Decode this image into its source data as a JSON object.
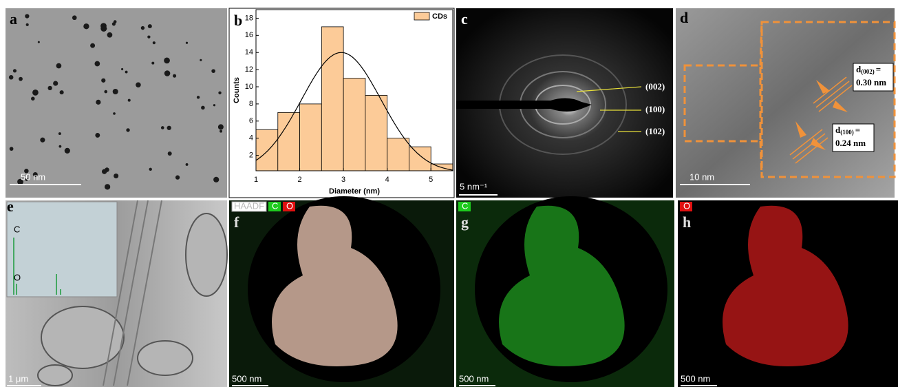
{
  "panels": {
    "a": {
      "label": "a",
      "scale_bar": "50 nm"
    },
    "b": {
      "label": "b"
    },
    "c": {
      "label": "c",
      "scale_bar": "5 nm⁻¹",
      "planes": [
        "(002)",
        "(100)",
        "(102)"
      ]
    },
    "d": {
      "label": "d",
      "scale_bar": "10 nm",
      "spacings": [
        {
          "symbol": "d",
          "plane": "(002)",
          "eq": "=",
          "value": "0.30 nm"
        },
        {
          "symbol": "d",
          "plane": "(100)",
          "eq": "=",
          "value": "0.24 nm"
        }
      ]
    },
    "e": {
      "label": "e",
      "scale_bar": "1 μm",
      "peaks": [
        "C",
        "O"
      ]
    },
    "f": {
      "label": "f",
      "scale_bar": "500 nm",
      "tags": [
        "HAADF",
        "C",
        "O"
      ]
    },
    "g": {
      "label": "g",
      "scale_bar": "500 nm",
      "tags": [
        "C"
      ]
    },
    "h": {
      "label": "h",
      "scale_bar": "500 nm",
      "tags": [
        "O"
      ]
    }
  },
  "chart_data": {
    "type": "histogram",
    "x_label": "Diameter (nm)",
    "y_label": "Counts",
    "bins": [
      1,
      1.5,
      2,
      2.5,
      3,
      3.5,
      4,
      4.5,
      5,
      5.5
    ],
    "series": [
      {
        "name": "CDs",
        "color": "#fccb98",
        "values": [
          5,
          7,
          8,
          17,
          11,
          9,
          4,
          3,
          1
        ]
      }
    ],
    "fit": {
      "mean": 2.95,
      "sd": 0.91,
      "peak": 14
    },
    "xlim": [
      1,
      5.5
    ],
    "ylim": [
      0.2,
      19
    ],
    "xticks": [
      1,
      2,
      3,
      4,
      5
    ],
    "yticks": [
      2,
      4,
      6,
      8,
      10,
      12,
      14,
      16,
      18
    ],
    "legend": "upper right"
  }
}
